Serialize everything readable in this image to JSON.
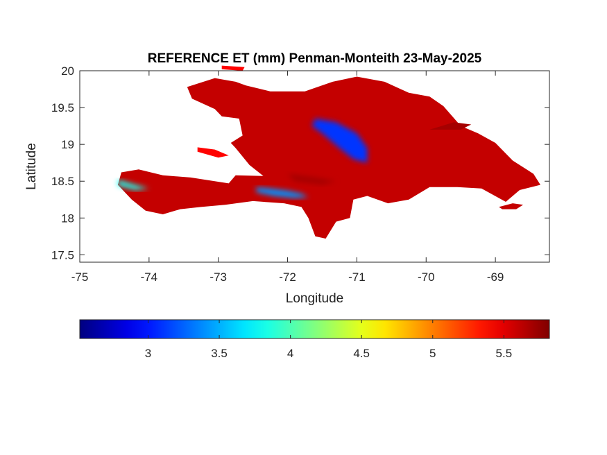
{
  "figure": {
    "title": "REFERENCE ET (mm) Penman-Monteith 23-May-2025",
    "xlabel": "Longitude",
    "ylabel": "Latitude"
  },
  "map": {
    "xlim": [
      -75,
      -68.22
    ],
    "ylim": [
      17.4,
      20
    ],
    "x_ticks": [
      -75,
      -74,
      -73,
      -72,
      -71,
      -70,
      -69
    ],
    "x_tick_labels": [
      "-75",
      "-74",
      "-73",
      "-72",
      "-71",
      "-70",
      "-69"
    ],
    "y_ticks": [
      17.5,
      18,
      18.5,
      19,
      19.5,
      20
    ],
    "y_tick_labels": [
      "17.5",
      "18",
      "18.5",
      "19",
      "19.5",
      "20"
    ],
    "grid": false,
    "regions": [
      {
        "name": "Hispaniola mainland",
        "value": 5.6,
        "lonlat": [
          [
            -74.45,
            18.45
          ],
          [
            -74.4,
            18.62
          ],
          [
            -74.15,
            18.66
          ],
          [
            -73.8,
            18.58
          ],
          [
            -73.4,
            18.55
          ],
          [
            -72.85,
            18.47
          ],
          [
            -72.75,
            18.58
          ],
          [
            -72.35,
            18.57
          ],
          [
            -72.55,
            18.72
          ],
          [
            -72.75,
            18.95
          ],
          [
            -72.82,
            19.02
          ],
          [
            -72.65,
            19.12
          ],
          [
            -72.7,
            19.35
          ],
          [
            -72.95,
            19.38
          ],
          [
            -73.05,
            19.48
          ],
          [
            -73.38,
            19.62
          ],
          [
            -73.45,
            19.78
          ],
          [
            -73.05,
            19.9
          ],
          [
            -72.75,
            19.85
          ],
          [
            -72.6,
            19.8
          ],
          [
            -72.25,
            19.72
          ],
          [
            -71.75,
            19.72
          ],
          [
            -71.35,
            19.85
          ],
          [
            -71.0,
            19.92
          ],
          [
            -70.6,
            19.85
          ],
          [
            -70.25,
            19.7
          ],
          [
            -69.95,
            19.65
          ],
          [
            -69.75,
            19.52
          ],
          [
            -69.5,
            19.25
          ],
          [
            -69.25,
            19.15
          ],
          [
            -69.0,
            19.02
          ],
          [
            -68.75,
            18.78
          ],
          [
            -68.45,
            18.6
          ],
          [
            -68.35,
            18.45
          ],
          [
            -68.65,
            18.38
          ],
          [
            -68.85,
            18.22
          ],
          [
            -69.2,
            18.4
          ],
          [
            -69.55,
            18.42
          ],
          [
            -69.95,
            18.42
          ],
          [
            -70.25,
            18.25
          ],
          [
            -70.55,
            18.2
          ],
          [
            -70.85,
            18.3
          ],
          [
            -71.05,
            18.25
          ],
          [
            -71.1,
            18.0
          ],
          [
            -71.3,
            17.95
          ],
          [
            -71.45,
            17.72
          ],
          [
            -71.6,
            17.75
          ],
          [
            -71.7,
            18.0
          ],
          [
            -71.8,
            18.15
          ],
          [
            -72.05,
            18.2
          ],
          [
            -72.5,
            18.23
          ],
          [
            -72.9,
            18.18
          ],
          [
            -73.25,
            18.15
          ],
          [
            -73.55,
            18.12
          ],
          [
            -73.8,
            18.05
          ],
          [
            -74.05,
            18.1
          ],
          [
            -74.25,
            18.25
          ],
          [
            -74.45,
            18.45
          ]
        ]
      },
      {
        "name": "Isla Saona",
        "value": 5.6,
        "lonlat": [
          [
            -68.95,
            18.15
          ],
          [
            -68.75,
            18.2
          ],
          [
            -68.6,
            18.18
          ],
          [
            -68.7,
            18.12
          ],
          [
            -68.9,
            18.12
          ],
          [
            -68.95,
            18.15
          ]
        ]
      },
      {
        "name": "Ile de la Gonave",
        "value": 5.4,
        "lonlat": [
          [
            -73.3,
            18.96
          ],
          [
            -73.05,
            18.93
          ],
          [
            -72.85,
            18.85
          ],
          [
            -73.0,
            18.82
          ],
          [
            -73.3,
            18.9
          ],
          [
            -73.3,
            18.96
          ]
        ]
      },
      {
        "name": "Ile de la Tortue",
        "value": 5.4,
        "lonlat": [
          [
            -72.95,
            20.07
          ],
          [
            -72.62,
            20.05
          ],
          [
            -72.65,
            20.0
          ],
          [
            -72.95,
            20.02
          ],
          [
            -72.95,
            20.07
          ]
        ]
      },
      {
        "name": "Samana peninsula",
        "value": 5.7,
        "lonlat": [
          [
            -69.95,
            19.2
          ],
          [
            -69.6,
            19.3
          ],
          [
            -69.35,
            19.27
          ],
          [
            -69.5,
            19.2
          ],
          [
            -69.95,
            19.2
          ]
        ]
      },
      {
        "name": "Cordillera Central",
        "value": 3.1,
        "lonlat": [
          [
            -71.6,
            19.35
          ],
          [
            -71.3,
            19.3
          ],
          [
            -71.0,
            19.15
          ],
          [
            -70.85,
            18.95
          ],
          [
            -70.85,
            18.75
          ],
          [
            -71.05,
            18.8
          ],
          [
            -71.25,
            18.95
          ],
          [
            -71.5,
            19.15
          ],
          [
            -71.65,
            19.25
          ],
          [
            -71.6,
            19.35
          ]
        ]
      },
      {
        "name": "Massif de la Selle",
        "value": 3.4,
        "lonlat": [
          [
            -72.45,
            18.42
          ],
          [
            -72.25,
            18.4
          ],
          [
            -72.0,
            18.37
          ],
          [
            -71.8,
            18.33
          ],
          [
            -71.7,
            18.28
          ],
          [
            -71.9,
            18.27
          ],
          [
            -72.2,
            18.3
          ],
          [
            -72.45,
            18.35
          ],
          [
            -72.45,
            18.42
          ]
        ]
      },
      {
        "name": "Massif de la Hotte",
        "value": 3.8,
        "lonlat": [
          [
            -74.45,
            18.52
          ],
          [
            -74.2,
            18.45
          ],
          [
            -74.0,
            18.4
          ],
          [
            -74.2,
            18.38
          ],
          [
            -74.45,
            18.44
          ],
          [
            -74.45,
            18.52
          ]
        ]
      },
      {
        "name": "Enriquillo basin",
        "value": 5.7,
        "lonlat": [
          [
            -72.0,
            18.6
          ],
          [
            -71.6,
            18.55
          ],
          [
            -71.3,
            18.5
          ],
          [
            -71.5,
            18.45
          ],
          [
            -71.9,
            18.5
          ],
          [
            -72.0,
            18.6
          ]
        ]
      }
    ]
  },
  "colorbar": {
    "colormap": "jet",
    "clim": [
      2.52,
      5.82
    ],
    "ticks": [
      3,
      3.5,
      4,
      4.5,
      5,
      5.5
    ],
    "tick_labels": [
      "3",
      "3.5",
      "4",
      "4.5",
      "5",
      "5.5"
    ]
  }
}
